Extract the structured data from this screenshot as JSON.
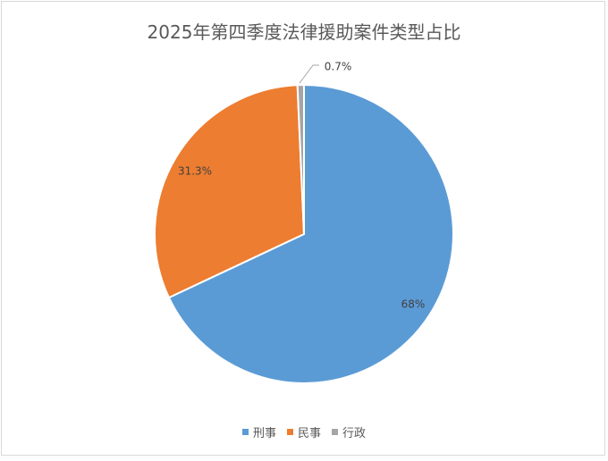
{
  "chart_data": {
    "type": "pie",
    "title": "2025年第四季度法律援助案件类型占比",
    "categories": [
      "刑事",
      "民事",
      "行政"
    ],
    "values": [
      68,
      31.3,
      0.7
    ],
    "labels": [
      "68%",
      "31.3%",
      "0.7%"
    ],
    "colors": [
      "#5b9bd5",
      "#ed7d31",
      "#a5a5a5"
    ],
    "legend_position": "bottom",
    "start_angle": "top, clockwise"
  }
}
